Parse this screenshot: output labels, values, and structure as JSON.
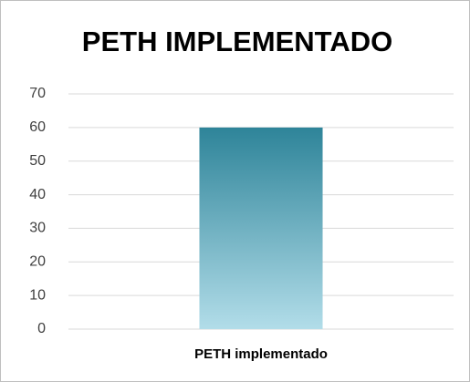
{
  "chart_data": {
    "type": "bar",
    "title": "PETH IMPLEMENTADO",
    "categories": [
      "PETH implementado"
    ],
    "values": [
      60
    ],
    "color": "#2e8499",
    "gradient_to": "#b2dde9",
    "ylim": [
      0,
      70
    ],
    "yticks": [
      0,
      10,
      20,
      30,
      40,
      50,
      60,
      70
    ],
    "grid": true
  }
}
